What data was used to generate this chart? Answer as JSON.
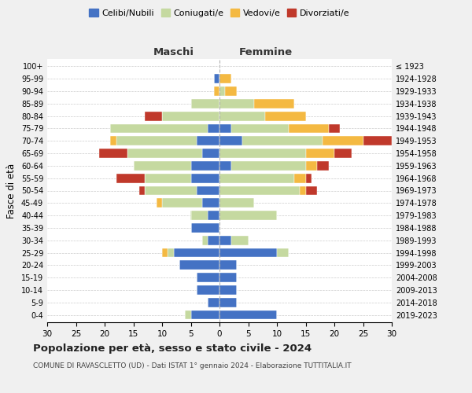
{
  "age_groups": [
    "0-4",
    "5-9",
    "10-14",
    "15-19",
    "20-24",
    "25-29",
    "30-34",
    "35-39",
    "40-44",
    "45-49",
    "50-54",
    "55-59",
    "60-64",
    "65-69",
    "70-74",
    "75-79",
    "80-84",
    "85-89",
    "90-94",
    "95-99",
    "100+"
  ],
  "birth_years": [
    "2019-2023",
    "2014-2018",
    "2009-2013",
    "2004-2008",
    "1999-2003",
    "1994-1998",
    "1989-1993",
    "1984-1988",
    "1979-1983",
    "1974-1978",
    "1969-1973",
    "1964-1968",
    "1959-1963",
    "1954-1958",
    "1949-1953",
    "1944-1948",
    "1939-1943",
    "1934-1938",
    "1929-1933",
    "1924-1928",
    "≤ 1923"
  ],
  "colors": {
    "celibe": "#4472C4",
    "coniugato": "#C5D9A0",
    "vedovo": "#F4B942",
    "divorziato": "#C0392B"
  },
  "maschi": {
    "celibe": [
      5,
      2,
      4,
      4,
      7,
      8,
      2,
      5,
      2,
      3,
      4,
      5,
      5,
      3,
      4,
      2,
      0,
      0,
      0,
      1,
      0
    ],
    "coniugato": [
      1,
      0,
      0,
      0,
      0,
      1,
      1,
      0,
      3,
      7,
      9,
      8,
      10,
      13,
      14,
      17,
      10,
      5,
      0,
      0,
      0
    ],
    "vedovo": [
      0,
      0,
      0,
      0,
      0,
      1,
      0,
      0,
      0,
      1,
      0,
      0,
      0,
      0,
      1,
      0,
      0,
      0,
      1,
      0,
      0
    ],
    "divorziato": [
      0,
      0,
      0,
      0,
      0,
      0,
      0,
      0,
      0,
      0,
      1,
      5,
      0,
      5,
      0,
      0,
      3,
      0,
      0,
      0,
      0
    ]
  },
  "femmine": {
    "celibe": [
      10,
      3,
      3,
      3,
      3,
      10,
      2,
      0,
      0,
      0,
      0,
      0,
      2,
      0,
      4,
      2,
      0,
      0,
      0,
      0,
      0
    ],
    "coniugato": [
      0,
      0,
      0,
      0,
      0,
      2,
      3,
      0,
      10,
      6,
      14,
      13,
      13,
      15,
      14,
      10,
      8,
      6,
      1,
      0,
      0
    ],
    "vedovo": [
      0,
      0,
      0,
      0,
      0,
      0,
      0,
      0,
      0,
      0,
      1,
      2,
      2,
      5,
      7,
      7,
      7,
      7,
      2,
      2,
      0
    ],
    "divorziato": [
      0,
      0,
      0,
      0,
      0,
      0,
      0,
      0,
      0,
      0,
      2,
      1,
      2,
      3,
      5,
      2,
      0,
      0,
      0,
      0,
      0
    ]
  },
  "xlim": 30,
  "title": "Popolazione per età, sesso e stato civile - 2024",
  "subtitle": "COMUNE DI RAVASCLETTO (UD) - Dati ISTAT 1° gennaio 2024 - Elaborazione TUTTITALIA.IT",
  "ylabel_left": "Fasce di età",
  "label_maschi": "Maschi",
  "label_femmine": "Femmine",
  "legend": [
    "Celibi/Nubili",
    "Coniugati/e",
    "Vedovi/e",
    "Divorziati/e"
  ],
  "bg_color": "#f0f0f0",
  "plot_bg_color": "#ffffff"
}
